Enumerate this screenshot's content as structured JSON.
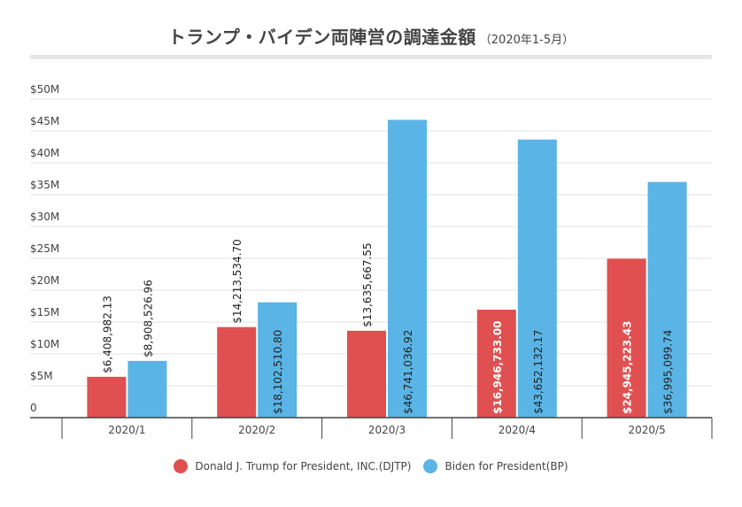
{
  "title": {
    "main": "トランプ・バイデン両陣営の調達金額",
    "sub": "（2020年1-5月）"
  },
  "chart_data": {
    "type": "bar",
    "categories": [
      "2020/1",
      "2020/2",
      "2020/3",
      "2020/4",
      "2020/5"
    ],
    "series": [
      {
        "name": "Donald J. Trump for President, INC.(DJTP)",
        "color": "#e05050",
        "values": [
          6408982.13,
          14213534.7,
          13635667.55,
          16946733.0,
          24945223.43
        ],
        "labels": [
          "$6,408,982.13",
          "$14,213,534.70",
          "$13,635,667.55",
          "$16,946,733.00",
          "$24,945,223.43"
        ]
      },
      {
        "name": "Biden for President(BP)",
        "color": "#5ab4e5",
        "values": [
          8908526.96,
          18102510.8,
          46741036.92,
          43652132.17,
          36995099.74
        ],
        "labels": [
          "$8,908,526.96",
          "$18,102,510.80",
          "$46,741,036.92",
          "$43,652,132.17",
          "$36,995,099.74"
        ]
      }
    ],
    "ylim": [
      0,
      50000000
    ],
    "yticks": [
      0,
      5000000,
      10000000,
      15000000,
      20000000,
      25000000,
      30000000,
      35000000,
      40000000,
      45000000,
      50000000
    ],
    "ytick_labels": [
      "0",
      "$5M",
      "$10M",
      "$15M",
      "$20M",
      "$25M",
      "$30M",
      "$35M",
      "$40M",
      "$45M",
      "$50M"
    ],
    "grid": true,
    "legend_position": "bottom-center"
  }
}
